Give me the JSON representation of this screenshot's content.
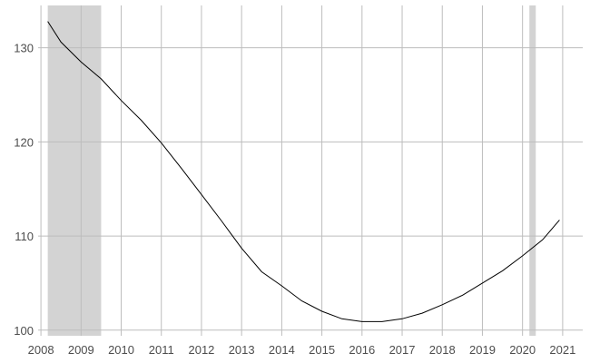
{
  "chart_data": {
    "type": "line",
    "title": "",
    "xlabel": "",
    "ylabel": "",
    "xlim": [
      2007.93,
      2021.5
    ],
    "ylim": [
      99.4,
      134.5
    ],
    "grid": true,
    "x_ticks": [
      2008,
      2009,
      2010,
      2011,
      2012,
      2013,
      2014,
      2015,
      2016,
      2017,
      2018,
      2019,
      2020,
      2021
    ],
    "y_ticks": [
      100,
      110,
      120,
      130
    ],
    "shaded_periods": [
      {
        "start": 2008.17,
        "end": 2009.5
      },
      {
        "start": 2020.17,
        "end": 2020.33
      }
    ],
    "series": [
      {
        "color": "#000000",
        "x": [
          2008.17,
          2008.5,
          2009.0,
          2009.5,
          2010.0,
          2010.5,
          2011.0,
          2011.5,
          2012.0,
          2012.5,
          2013.0,
          2013.5,
          2014.0,
          2014.5,
          2015.0,
          2015.5,
          2016.0,
          2016.5,
          2017.0,
          2017.5,
          2018.0,
          2018.5,
          2019.0,
          2019.5,
          2020.0,
          2020.5,
          2020.92
        ],
        "y": [
          132.8,
          130.6,
          128.5,
          126.7,
          124.4,
          122.3,
          119.9,
          117.2,
          114.4,
          111.6,
          108.7,
          106.2,
          104.7,
          103.1,
          102.0,
          101.2,
          100.9,
          100.9,
          101.2,
          101.8,
          102.7,
          103.7,
          105.0,
          106.3,
          107.9,
          109.6,
          111.7
        ]
      }
    ]
  }
}
